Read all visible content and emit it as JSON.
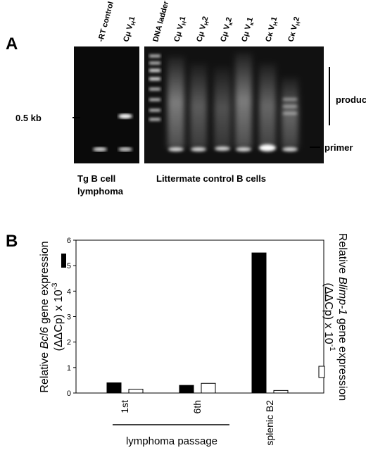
{
  "panel_a": {
    "panel_label": "A",
    "lanes_left": [
      {
        "main": "-RT control",
        "sub": "",
        "end": ""
      },
      {
        "main": "Cμ V",
        "sub": "H",
        "end": "1"
      }
    ],
    "lanes_right": [
      {
        "main": "DNA ladder",
        "sub": "",
        "end": ""
      },
      {
        "main": "Cμ V",
        "sub": "H",
        "end": "1"
      },
      {
        "main": "Cμ V",
        "sub": "H",
        "end": "2"
      },
      {
        "main": "Cμ V",
        "sub": "κ",
        "end": "2"
      },
      {
        "main": "Cμ V",
        "sub": "κ",
        "end": "1"
      },
      {
        "main": "Cκ V",
        "sub": "H",
        "end": "1"
      },
      {
        "main": "Cκ V",
        "sub": "H",
        "end": "2"
      }
    ],
    "size_marker": "0.5 kb",
    "products_label": "products",
    "primer_label": "primer",
    "left_caption": [
      "Tg B cell",
      "lymphoma"
    ],
    "right_caption": "Littermate control B cells"
  },
  "chart_data": {
    "type": "bar",
    "panel_label": "B",
    "categories": [
      "1st",
      "6th",
      "splenic B2"
    ],
    "series": [
      {
        "name": "Bcl6",
        "color": "#000000",
        "values": [
          0.4,
          0.3,
          5.5
        ]
      },
      {
        "name": "Blimp-1",
        "color": "#ffffff",
        "values": [
          0.15,
          0.38,
          0.1
        ]
      }
    ],
    "ylim": [
      0,
      6
    ],
    "yticks": [
      0,
      1,
      2,
      3,
      4,
      5,
      6
    ],
    "y_label": {
      "line1": [
        "Relative ",
        "Bcl6",
        " gene expression"
      ],
      "line2": [
        "(ΔΔCp) x 10",
        "-3"
      ]
    },
    "y2_label": {
      "line1": [
        "Relative ",
        "Blimp-1",
        " gene expression"
      ],
      "line2": [
        "(ΔΔCp) x 10",
        "-1"
      ]
    },
    "group_label": "lymphoma passage"
  }
}
